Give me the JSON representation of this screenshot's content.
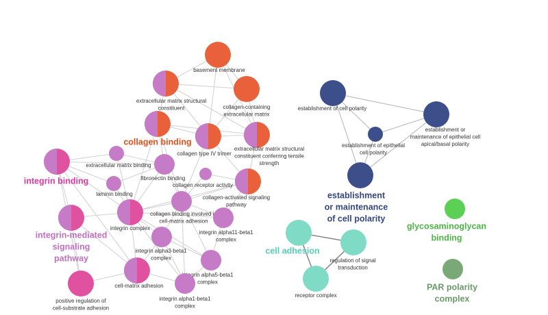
{
  "nodes": [
    {
      "label": [
        "basement membrane"
      ]
    },
    {
      "label": [
        "extracellular matrix structural",
        "constituent"
      ]
    },
    {
      "label": [
        "collagen-containing",
        "extracellular matrix"
      ]
    },
    {
      "label": [
        "collagen binding"
      ]
    },
    {
      "label": [
        "collagen type IV trimer"
      ]
    },
    {
      "label": [
        "extracellular matrix structural",
        "constituent conferring tensile",
        "strength"
      ]
    },
    {
      "label": [
        "extracellular matrix binding"
      ]
    },
    {
      "label": [
        "fibronectin binding"
      ]
    },
    {
      "label": [
        "laminin binding"
      ]
    },
    {
      "label": [
        "collagen receptor activity"
      ]
    },
    {
      "label": [
        "collagen-activated signaling",
        "pathway"
      ]
    },
    {
      "label": [
        "integrin binding"
      ]
    },
    {
      "label": [
        "integrin complex"
      ]
    },
    {
      "label": [
        "collagen binding involved in",
        "cell-matrix adhesion"
      ]
    },
    {
      "label": [
        "integrin alpha11-beta1",
        "complex"
      ]
    },
    {
      "label": [
        "integrin-mediated",
        "signaling",
        "pathway"
      ]
    },
    {
      "label": [
        "integrin alpha3-beta1",
        "complex"
      ]
    },
    {
      "label": [
        "integrin alpha5-beta1",
        "complex"
      ]
    },
    {
      "label": [
        "cell-matrix adhesion"
      ]
    },
    {
      "label": [
        "positive regulation of",
        "cell-substrate adhesion"
      ]
    },
    {
      "label": [
        "integrin alpha1-beta1",
        "complex"
      ]
    },
    {
      "label": [
        "establishment of cell polarity"
      ]
    },
    {
      "label": [
        "establishment or",
        "maintenance of epithelial cell",
        "apical/basal polarity"
      ]
    },
    {
      "label": [
        "establishment of epithelial",
        "cell polarity"
      ]
    },
    {
      "label": [
        "establishment",
        "or maintenance",
        "of cell polarity"
      ]
    },
    {
      "label": [
        "cell adhesion"
      ]
    },
    {
      "label": [
        "regulation of signal",
        "transduction"
      ]
    },
    {
      "label": [
        "receptor complex"
      ]
    },
    {
      "label": [
        "glycosaminoglycan",
        "binding"
      ]
    },
    {
      "label": [
        "PAR polarity",
        "complex"
      ]
    }
  ]
}
